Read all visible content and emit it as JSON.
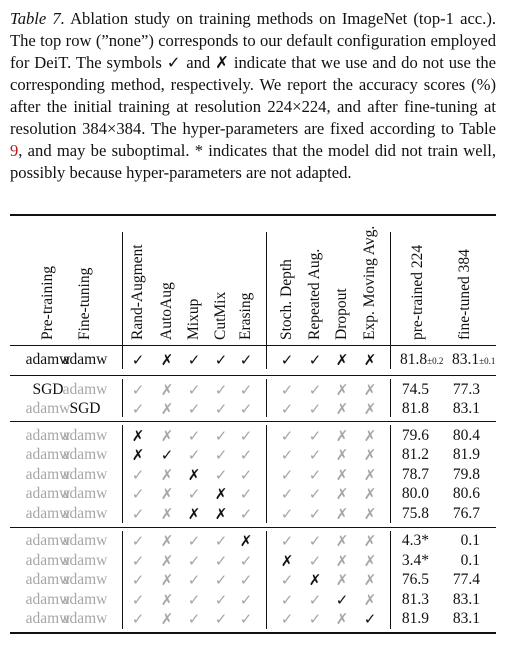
{
  "caption": {
    "label": "Table 7.",
    "parts": [
      "Ablation study on training methods on ImageNet (top-1 acc.). The top row (”none”) corresponds to our default configuration employed for DeiT. The symbols ✓ and ✗ indicate that we use and do not use the corresponding method, respectively. We report the accuracy scores (%) after the initial training at resolution 224×224, and after fine-tuning at resolution 384×384. The hyper-parameters are fixed according to Table ",
      "9",
      ", and may be suboptimal. * indicates that the model did not train well, possibly because hyper-parameters are not adapted."
    ]
  },
  "columns": [
    "Pre-training",
    "Fine-tuning",
    "Rand-Augment",
    "AutoAug",
    "Mixup",
    "CutMix",
    "Erasing",
    "Stoch. Depth",
    "Repeated Aug.",
    "Dropout",
    "Exp. Moving Avg.",
    "pre-trained 224",
    "fine-tuned 384"
  ],
  "symbols": {
    "check": "✓",
    "cross": "✗"
  },
  "rows": [
    {
      "pre": "adamw",
      "fine": "adamw",
      "methods": "CXCCCCCXX",
      "p224": "81.8",
      "p224_pm": "±0.2",
      "f384": "83.1",
      "f384_pm": "±0.1"
    },
    {
      "pre": "SGD",
      "fine": "adamw",
      "methods": "CXCCCCCXX",
      "p224": "74.5",
      "f384": "77.3"
    },
    {
      "pre": "adamw",
      "fine": "SGD",
      "methods": "CXCCCCCXX",
      "p224": "81.8",
      "f384": "83.1"
    },
    {
      "pre": "adamw",
      "fine": "adamw",
      "methods": "XXCCCCCXX",
      "p224": "79.6",
      "f384": "80.4"
    },
    {
      "pre": "adamw",
      "fine": "adamw",
      "methods": "XCCCCCCXX",
      "p224": "81.2",
      "f384": "81.9"
    },
    {
      "pre": "adamw",
      "fine": "adamw",
      "methods": "CXXCCCCXX",
      "p224": "78.7",
      "f384": "79.8"
    },
    {
      "pre": "adamw",
      "fine": "adamw",
      "methods": "CXCXCCCXX",
      "p224": "80.0",
      "f384": "80.6"
    },
    {
      "pre": "adamw",
      "fine": "adamw",
      "methods": "CXXXCCCXX",
      "p224": "75.8",
      "f384": "76.7"
    },
    {
      "pre": "adamw",
      "fine": "adamw",
      "methods": "CXCCXCCXX",
      "p224": "4.3*",
      "f384": "0.1"
    },
    {
      "pre": "adamw",
      "fine": "adamw",
      "methods": "CXCCCXCXX",
      "p224": "3.4*",
      "f384": "0.1"
    },
    {
      "pre": "adamw",
      "fine": "adamw",
      "methods": "CXCCCCXXX",
      "p224": "76.5",
      "f384": "77.4"
    },
    {
      "pre": "adamw",
      "fine": "adamw",
      "methods": "CXCCCCCCX",
      "p224": "81.3",
      "f384": "83.1"
    },
    {
      "pre": "adamw",
      "fine": "adamw",
      "methods": "CXCCCCCXC",
      "p224": "81.9",
      "f384": "83.1"
    }
  ],
  "highlight": {
    "row0": "ALL",
    "row1": "PRE",
    "row2": "FINE",
    "row3": "0",
    "row4": "01",
    "row5": "2",
    "row6": "3",
    "row7": "23",
    "row8": "4",
    "row9": "5",
    "row10": "6",
    "row11": "7",
    "row12": "8"
  }
}
